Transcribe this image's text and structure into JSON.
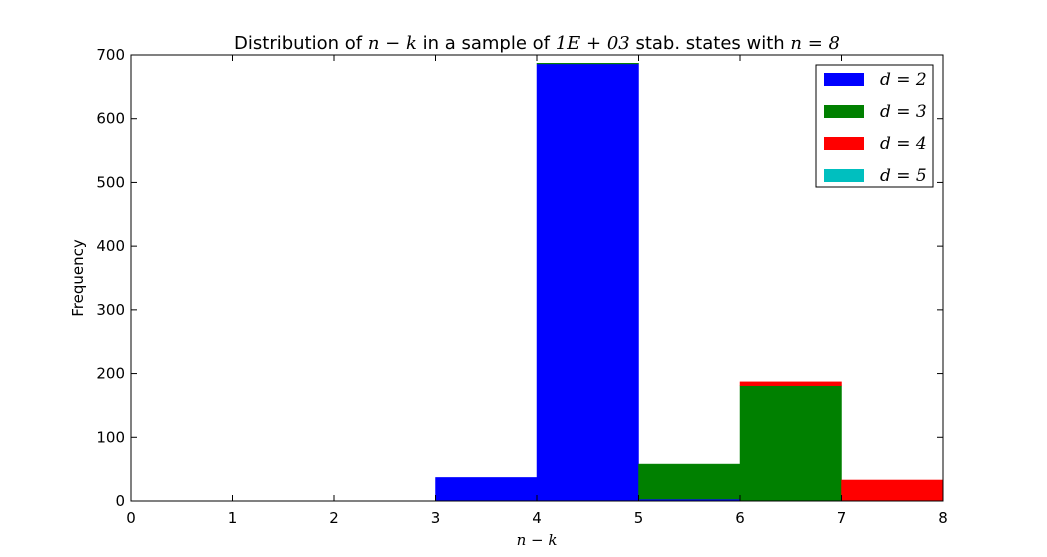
{
  "chart_data": {
    "type": "bar",
    "title_parts": [
      {
        "text": "Distribution of ",
        "math": false
      },
      {
        "text": "n − k",
        "math": true
      },
      {
        "text": " in a sample of ",
        "math": false
      },
      {
        "text": "1E + 03",
        "math": true
      },
      {
        "text": " stab. states with ",
        "math": false
      },
      {
        "text": "n = 8",
        "math": true
      }
    ],
    "xlabel": "n − k",
    "ylabel": "Frequency",
    "xlim": [
      0,
      8
    ],
    "ylim": [
      0,
      700
    ],
    "x_ticks": [
      0,
      1,
      2,
      3,
      4,
      5,
      6,
      7,
      8
    ],
    "y_ticks": [
      0,
      100,
      200,
      300,
      400,
      500,
      600,
      700
    ],
    "bin_edges": [
      0,
      1,
      2,
      3,
      4,
      5,
      6,
      7,
      8
    ],
    "grid": false,
    "legend_position": "top-right",
    "series": [
      {
        "name": "d = 2",
        "color": "#0000ff",
        "values": [
          0,
          0,
          0,
          37,
          686,
          3,
          0,
          0
        ]
      },
      {
        "name": "d = 3",
        "color": "#008000",
        "values": [
          0,
          0,
          0,
          0,
          1,
          55,
          181,
          0
        ]
      },
      {
        "name": "d = 4",
        "color": "#ff0000",
        "values": [
          0,
          0,
          0,
          0,
          0,
          0,
          6,
          33
        ]
      },
      {
        "name": "d = 5",
        "color": "#00bfbf",
        "values": [
          0,
          0,
          0,
          0,
          0,
          0,
          0,
          0
        ]
      }
    ]
  }
}
